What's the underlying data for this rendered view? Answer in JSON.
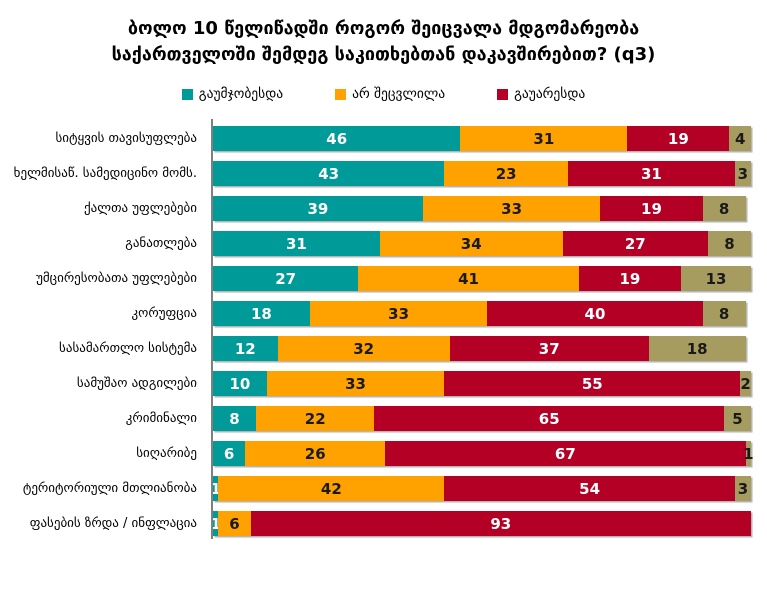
{
  "chart_data": {
    "type": "bar",
    "stacked": true,
    "orientation": "horizontal",
    "title": "ბოლო 10 წელიწადში როგორ შეიცვალა მდგომარეობა საქართველოში შემდეგ საკითხებთან დაკავშირებით? (q3)",
    "xlim": [
      0,
      100
    ],
    "grid": false,
    "legend_position": "top",
    "value_labels": "inside",
    "axis_line_color": "#7f7f7f",
    "categories": [
      "სიტყვის თავისუფლება",
      "ხელმისაწ. სამედიცინო მომს.",
      "ქალთა უფლებები",
      "განათლება",
      "უმცირესობათა უფლებები",
      "კორუფცია",
      "სასამართლო სისტემა",
      "სამუშაო ადგილები",
      "კრიმინალი",
      "სიღარიბე",
      "ტერიტორიული მთლიანობა",
      "ფასების ზრდა / ინფლაცია"
    ],
    "series": [
      {
        "name": "გაუმჯობესდა",
        "color": "#009B98",
        "label_color": "#ffffff",
        "values": [
          46,
          43,
          39,
          31,
          27,
          18,
          12,
          10,
          8,
          6,
          1,
          1
        ]
      },
      {
        "name": "არ შეცვლილა",
        "color": "#FFA200",
        "label_color": "#1a1a1a",
        "values": [
          31,
          23,
          33,
          34,
          41,
          33,
          32,
          33,
          22,
          26,
          42,
          6
        ]
      },
      {
        "name": "გაუარესდა",
        "color": "#B50026",
        "label_color": "#ffffff",
        "values": [
          19,
          31,
          19,
          27,
          19,
          40,
          37,
          55,
          65,
          67,
          54,
          93
        ]
      },
      {
        "name": "",
        "color": "#A79C60",
        "label_color": "#1a1a1a",
        "values": [
          4,
          3,
          8,
          8,
          13,
          8,
          18,
          2,
          5,
          1,
          3,
          0
        ]
      }
    ]
  }
}
